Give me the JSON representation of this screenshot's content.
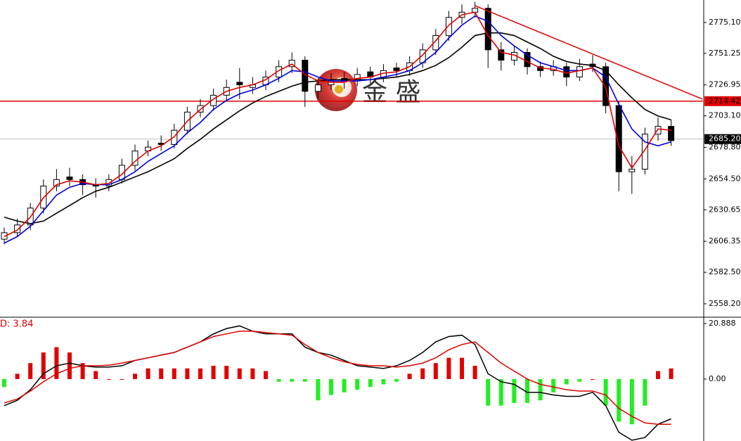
{
  "watermark": "金 盛",
  "chart_data": [
    {
      "type": "candlestick",
      "ylim": [
        2548.4,
        2792.4
      ],
      "yticks": [
        {
          "value": 2775.1,
          "label": "2775.10"
        },
        2751.25,
        2726.95,
        {
          "value": 2703.1,
          "label": "2703.10"
        },
        {
          "value": 2678.8,
          "label": "2678.80"
        },
        {
          "value": 2654.5,
          "label": "2654.50"
        },
        2630.65,
        2606.35,
        {
          "value": 2582.5,
          "label": "2582.50"
        },
        {
          "value": 2558.2,
          "label": "2558.20"
        }
      ],
      "candles": [
        [
          2608,
          2617,
          2604,
          2613
        ],
        [
          2613,
          2624,
          2610,
          2619
        ],
        [
          2619,
          2636,
          2615,
          2632
        ],
        [
          2632,
          2654,
          2628,
          2649
        ],
        [
          2649,
          2662,
          2645,
          2654
        ],
        [
          2656,
          2663,
          2649,
          2654
        ],
        [
          2654,
          2658,
          2642,
          2650
        ],
        [
          2650,
          2655,
          2640,
          2649
        ],
        [
          2649,
          2658,
          2645,
          2654
        ],
        [
          2654,
          2670,
          2651,
          2665
        ],
        [
          2665,
          2681,
          2661,
          2676
        ],
        [
          2676,
          2684,
          2672,
          2679
        ],
        [
          2682,
          2688,
          2676,
          2681
        ],
        [
          2681,
          2697,
          2678,
          2692
        ],
        [
          2692,
          2710,
          2689,
          2706
        ],
        [
          2706,
          2716,
          2702,
          2711
        ],
        [
          2711,
          2724,
          2707,
          2719
        ],
        [
          2719,
          2731,
          2715,
          2725
        ],
        [
          2729,
          2740,
          2716,
          2727
        ],
        [
          2725,
          2733,
          2720,
          2727
        ],
        [
          2727,
          2738,
          2723,
          2733
        ],
        [
          2733,
          2746,
          2729,
          2741
        ],
        [
          2741,
          2752,
          2736,
          2746
        ],
        [
          2746,
          2749,
          2710,
          2722
        ],
        [
          2722,
          2732,
          2716,
          2727
        ],
        [
          2727,
          2736,
          2723,
          2730
        ],
        [
          2732,
          2737,
          2724,
          2730
        ],
        [
          2730,
          2740,
          2726,
          2735
        ],
        [
          2737,
          2741,
          2728,
          2733
        ],
        [
          2733,
          2743,
          2729,
          2738
        ],
        [
          2740,
          2744,
          2733,
          2738
        ],
        [
          2738,
          2749,
          2734,
          2744
        ],
        [
          2744,
          2759,
          2740,
          2754
        ],
        [
          2754,
          2770,
          2750,
          2765
        ],
        [
          2765,
          2784,
          2761,
          2779
        ],
        [
          2779,
          2789,
          2774,
          2783
        ],
        [
          2783,
          2791,
          2779,
          2786
        ],
        [
          2786,
          2789,
          2740,
          2754
        ],
        [
          2754,
          2760,
          2738,
          2746
        ],
        [
          2746,
          2757,
          2742,
          2752
        ],
        [
          2752,
          2755,
          2735,
          2741
        ],
        [
          2741,
          2745,
          2733,
          2738
        ],
        [
          2738,
          2746,
          2734,
          2741
        ],
        [
          2741,
          2744,
          2726,
          2733
        ],
        [
          2733,
          2747,
          2730,
          2741
        ],
        [
          2743,
          2750,
          2737,
          2741
        ],
        [
          2741,
          2744,
          2705,
          2711
        ],
        [
          2711,
          2714,
          2645,
          2660
        ],
        [
          2660,
          2672,
          2643,
          2662
        ],
        [
          2662,
          2694,
          2658,
          2689
        ],
        [
          2689,
          2702,
          2684,
          2695
        ],
        [
          2695,
          2700,
          2680,
          2684
        ]
      ],
      "lines": [
        {
          "color": "#000000",
          "values": [
            2625,
            2622,
            2620,
            2622,
            2628,
            2634,
            2640,
            2645,
            2648,
            2652,
            2656,
            2660,
            2665,
            2670,
            2678,
            2685,
            2693,
            2700,
            2707,
            2713,
            2718,
            2722,
            2726,
            2729,
            2730,
            2731,
            2731,
            2731,
            2731,
            2732,
            2733,
            2735,
            2738,
            2742,
            2748,
            2756,
            2765,
            2767,
            2767,
            2765,
            2760,
            2755,
            2749,
            2745,
            2743,
            2742,
            2738,
            2727,
            2717,
            2708,
            2703,
            2700
          ]
        },
        {
          "color": "#0000dd",
          "values": [
            2605,
            2610,
            2618,
            2630,
            2642,
            2648,
            2651,
            2650,
            2650,
            2654,
            2660,
            2668,
            2674,
            2680,
            2690,
            2698,
            2708,
            2715,
            2720,
            2723,
            2727,
            2732,
            2738,
            2737,
            2733,
            2730,
            2730,
            2730,
            2731,
            2733,
            2735,
            2738,
            2744,
            2752,
            2763,
            2773,
            2780,
            2776,
            2765,
            2757,
            2750,
            2744,
            2741,
            2738,
            2738,
            2740,
            2733,
            2712,
            2693,
            2683,
            2680,
            2683
          ]
        },
        {
          "color": "#e00000",
          "values": [
            2610,
            2615,
            2625,
            2640,
            2650,
            2653,
            2652,
            2650,
            2651,
            2658,
            2668,
            2676,
            2680,
            2687,
            2699,
            2708,
            2716,
            2722,
            2725,
            2727,
            2731,
            2738,
            2743,
            2735,
            2730,
            2729,
            2729,
            2732,
            2733,
            2736,
            2737,
            2741,
            2750,
            2761,
            2773,
            2781,
            2783,
            2765,
            2752,
            2750,
            2745,
            2740,
            2739,
            2736,
            2738,
            2740,
            2725,
            2680,
            2663,
            2677,
            2693,
            2692
          ]
        }
      ],
      "hlines": [
        {
          "value": 2714.42,
          "color": "#e00000"
        },
        {
          "value": 2685.2,
          "label": "2685.20",
          "color": "#c0c0c0"
        }
      ],
      "trendline": {
        "x": [
          36,
          53.4
        ],
        "y": [
          2788,
          2716
        ],
        "color": "#e00000"
      }
    },
    {
      "type": "macd",
      "title": "D: 3.84",
      "ylim": [
        -23.3,
        23.0
      ],
      "yticks": [
        20.888,
        {
          "value": 0,
          "label": "0.00"
        }
      ],
      "colors": {
        "up": "#e00000",
        "down": "#22ee22"
      },
      "histogram": [
        -3,
        2,
        6,
        10,
        12,
        10,
        6,
        3,
        0,
        0,
        2,
        4,
        4,
        4,
        4,
        4,
        5,
        5,
        4,
        4,
        3,
        -1,
        -1,
        -1,
        -8,
        -6,
        -5,
        -4,
        -3,
        -2,
        -1,
        2,
        4,
        6,
        8,
        8,
        5,
        -10,
        -10,
        -9,
        -9,
        -8,
        -5,
        -2,
        -1,
        0,
        -10,
        -16,
        -17,
        -10,
        3,
        4
      ],
      "lines": [
        {
          "color": "#000000",
          "values": [
            -10,
            -8,
            -4,
            2,
            5,
            6,
            5,
            4.5,
            4.5,
            5,
            7,
            8,
            9,
            10,
            12,
            14,
            17,
            19,
            20,
            18,
            17,
            17,
            17,
            12,
            10,
            9,
            7,
            5,
            4.5,
            4,
            5,
            7,
            10,
            14,
            16,
            16.5,
            13,
            2,
            -1,
            -2,
            -5,
            -5,
            -6,
            -6.5,
            -6.5,
            -5,
            -10,
            -20,
            -23,
            -22,
            -17,
            -15
          ]
        },
        {
          "color": "#e00000",
          "values": [
            -9,
            -7.5,
            -4.5,
            -1,
            2,
            4,
            5,
            5,
            5.2,
            6,
            7,
            8,
            9,
            10,
            12,
            14,
            16,
            17,
            18,
            18,
            17.5,
            17,
            16.5,
            13,
            10,
            8,
            6.5,
            5.5,
            5,
            5,
            4.5,
            5,
            6,
            8,
            11,
            13,
            14,
            10,
            6,
            3,
            0,
            -2,
            -3,
            -4,
            -4.5,
            -4.5,
            -6,
            -11,
            -14,
            -16.5,
            -17,
            -17
          ]
        }
      ]
    }
  ]
}
